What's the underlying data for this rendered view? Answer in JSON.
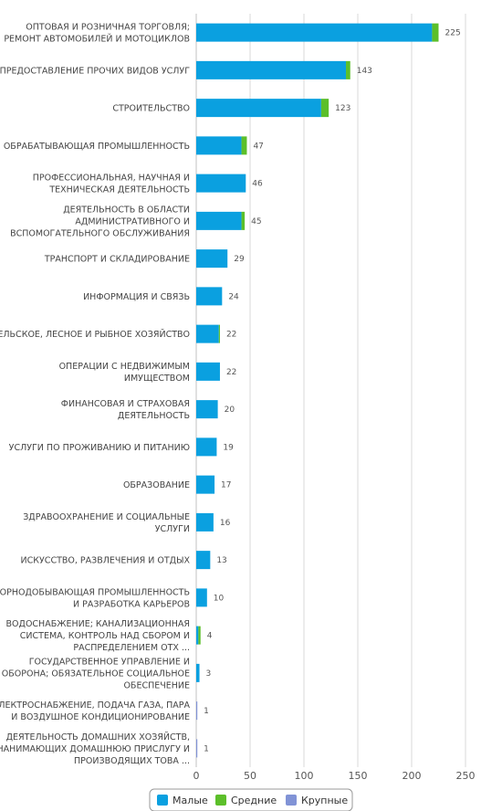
{
  "chart_data": {
    "type": "bar",
    "orientation": "horizontal",
    "stacked": true,
    "categories": [
      [
        "ОПТОВАЯ И РОЗНИЧНАЯ ТОРГОВЛЯ;",
        "РЕМОНТ АВТОМОБИЛЕЙ И МОТОЦИКЛОВ"
      ],
      [
        "ПРЕДОСТАВЛЕНИЕ ПРОЧИХ ВИДОВ УСЛУГ"
      ],
      [
        "СТРОИТЕЛЬСТВО"
      ],
      [
        "ОБРАБАТЫВАЮЩАЯ ПРОМЫШЛЕННОСТЬ"
      ],
      [
        "ПРОФЕССИОНАЛЬНАЯ, НАУЧНАЯ И",
        "ТЕХНИЧЕСКАЯ ДЕЯТЕЛЬНОСТЬ"
      ],
      [
        "ДЕЯТЕЛЬНОСТЬ В ОБЛАСТИ",
        "АДМИНИСТРАТИВНОГО И",
        "ВСПОМОГАТЕЛЬНОГО ОБСЛУЖИВАНИЯ"
      ],
      [
        "ТРАНСПОРТ И СКЛАДИРОВАНИЕ"
      ],
      [
        "ИНФОРМАЦИЯ И СВЯЗЬ"
      ],
      [
        "СЕЛЬСКОЕ, ЛЕСНОЕ И РЫБНОЕ ХОЗЯЙСТВО"
      ],
      [
        "ОПЕРАЦИИ С НЕДВИЖИМЫМ",
        "ИМУЩЕСТВОМ"
      ],
      [
        "ФИНАНСОВАЯ И СТРАХОВАЯ",
        "ДЕЯТЕЛЬНОСТЬ"
      ],
      [
        "УСЛУГИ ПО ПРОЖИВАНИЮ И ПИТАНИЮ"
      ],
      [
        "ОБРАЗОВАНИЕ"
      ],
      [
        "ЗДРАВООХРАНЕНИЕ И СОЦИАЛЬНЫЕ",
        "УСЛУГИ"
      ],
      [
        "ИСКУССТВО, РАЗВЛЕЧЕНИЯ И ОТДЫХ"
      ],
      [
        "ГОРНОДОБЫВАЮЩАЯ ПРОМЫШЛЕННОСТЬ",
        "И РАЗРАБОТКА КАРЬЕРОВ"
      ],
      [
        "ВОДОСНАБЖЕНИЕ; КАНАЛИЗАЦИОННАЯ",
        "СИСТЕМА, КОНТРОЛЬ НАД СБОРОМ И",
        "РАСПРЕДЕЛЕНИЕМ ОТХ ..."
      ],
      [
        "ГОСУДАРСТВЕННОЕ УПРАВЛЕНИЕ И",
        "ОБОРОНА; ОБЯЗАТЕЛЬНОЕ СОЦИАЛЬНОЕ",
        "ОБЕСПЕЧЕНИЕ"
      ],
      [
        "ЭЛЕКТРОСНАБЖЕНИЕ, ПОДАЧА ГАЗА, ПАРА",
        "И ВОЗДУШНОЕ КОНДИЦИОНИРОВАНИЕ"
      ],
      [
        "ДЕЯТЕЛЬНОСТЬ ДОМАШНИХ ХОЗЯЙСТВ,",
        "НАНИМАЮЩИХ ДОМАШНЮЮ ПРИСЛУГУ И",
        "ПРОИЗВОДЯЩИХ ТОВА ..."
      ]
    ],
    "series": [
      {
        "name": "Малые",
        "color": "#0aa0e0",
        "values": [
          219,
          139,
          116,
          42,
          46,
          42,
          29,
          24,
          21,
          22,
          20,
          19,
          17,
          16,
          13,
          10,
          2,
          3,
          0,
          0
        ]
      },
      {
        "name": "Средние",
        "color": "#5cbf2a",
        "values": [
          6,
          4,
          7,
          5,
          0,
          3,
          0,
          0,
          1,
          0,
          0,
          0,
          0,
          0,
          0,
          0,
          2,
          0,
          0,
          0
        ]
      },
      {
        "name": "Крупные",
        "color": "#8193d6",
        "values": [
          0,
          0,
          0,
          0,
          0,
          0,
          0,
          0,
          0,
          0,
          0,
          0,
          0,
          0,
          0,
          0,
          0,
          0,
          1,
          1
        ]
      }
    ],
    "totals": [
      225,
      143,
      123,
      47,
      46,
      45,
      29,
      24,
      22,
      22,
      20,
      19,
      17,
      16,
      13,
      10,
      4,
      3,
      1,
      1
    ],
    "xlim": [
      0,
      250
    ],
    "xticks": [
      0,
      50,
      100,
      150,
      200,
      250
    ],
    "grid": true,
    "legend_position": "bottom-center"
  }
}
